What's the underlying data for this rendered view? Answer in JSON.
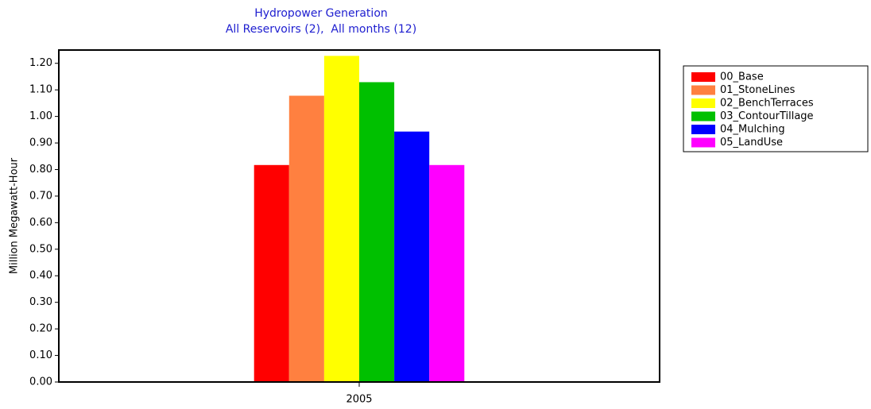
{
  "chart_data": {
    "type": "bar",
    "title": "Hydropower Generation",
    "subtitle": "All Reservoirs (2),  All months (12)",
    "y_label": "Million Megawatt-Hour",
    "categories": [
      "2005"
    ],
    "series": [
      {
        "name": "00_Base",
        "color": "#ff0000",
        "values": [
          0.817
        ]
      },
      {
        "name": "01_StoneLines",
        "color": "#ff8040",
        "values": [
          1.078
        ]
      },
      {
        "name": "02_BenchTerraces",
        "color": "#ffff00",
        "values": [
          1.228
        ]
      },
      {
        "name": "03_ContourTillage",
        "color": "#00c000",
        "values": [
          1.129
        ]
      },
      {
        "name": "04_Mulching",
        "color": "#0000ff",
        "values": [
          0.943
        ]
      },
      {
        "name": "05_LandUse",
        "color": "#ff00ff",
        "values": [
          0.817
        ]
      }
    ],
    "ylim": [
      0,
      1.25
    ],
    "yticks": [
      {
        "value": 0,
        "label": "0.00"
      },
      {
        "value": 0.1,
        "label": "0.10"
      },
      {
        "value": 0.2,
        "label": "0.20"
      },
      {
        "value": 0.3,
        "label": "0.30"
      },
      {
        "value": 0.4,
        "label": "0.40"
      },
      {
        "value": 0.5,
        "label": "0.50"
      },
      {
        "value": 0.6,
        "label": "0.60"
      },
      {
        "value": 0.7,
        "label": "0.70"
      },
      {
        "value": 0.8,
        "label": "0.80"
      },
      {
        "value": 0.9,
        "label": "0.90"
      },
      {
        "value": 1.0,
        "label": "1.00"
      },
      {
        "value": 1.1,
        "label": "1.10"
      },
      {
        "value": 1.2,
        "label": "1.20"
      }
    ],
    "grid": false,
    "legend": "right"
  }
}
